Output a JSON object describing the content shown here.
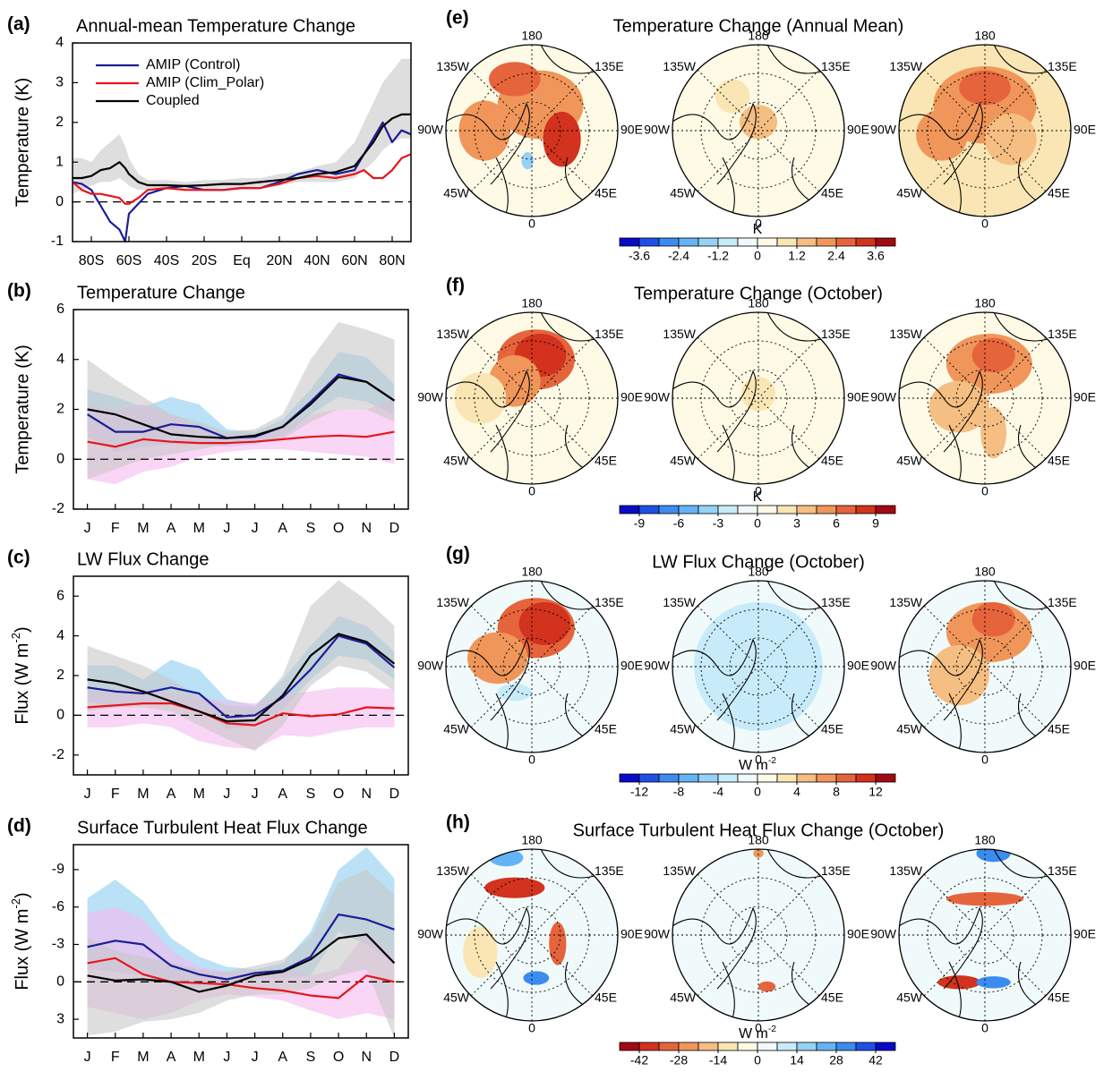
{
  "chart_data": [
    {
      "type": "line",
      "panel": "(a)",
      "title": "Annual-mean Temperature Change",
      "y_label": "Temperature (K)",
      "legend": "upper-left",
      "zero_line": true,
      "x": [
        -90,
        -85,
        -80,
        -75,
        -70,
        -65,
        -62,
        -60,
        -55,
        -50,
        -40,
        -30,
        -20,
        -10,
        0,
        10,
        20,
        30,
        40,
        50,
        60,
        65,
        70,
        75,
        80,
        85,
        90
      ],
      "xlim": [
        -90,
        90
      ],
      "xticks": [
        {
          "value": -80,
          "label": "80S"
        },
        {
          "value": -60,
          "label": "60S"
        },
        {
          "value": -40,
          "label": "40S"
        },
        {
          "value": -20,
          "label": "20S"
        },
        {
          "value": 0,
          "label": "Eq"
        },
        {
          "value": 20,
          "label": "20N"
        },
        {
          "value": 40,
          "label": "40N"
        },
        {
          "value": 60,
          "label": "60N"
        },
        {
          "value": 80,
          "label": "80N"
        }
      ],
      "ylim": [
        -1,
        4
      ],
      "yticks": [
        -1,
        0,
        1,
        2,
        3,
        4
      ],
      "series": [
        {
          "name": "AMIP (Control)",
          "color": "#1c1c96",
          "values": [
            0.5,
            0.45,
            0.3,
            -0.1,
            -0.5,
            -0.7,
            -1.0,
            -0.3,
            -0.05,
            0.2,
            0.35,
            0.4,
            0.3,
            0.3,
            0.35,
            0.35,
            0.5,
            0.7,
            0.8,
            0.7,
            0.8,
            1.2,
            1.6,
            2.0,
            1.5,
            1.8,
            1.7
          ]
        },
        {
          "name": "AMIP (Clim_Polar)",
          "color": "#e8141c",
          "values": [
            0.5,
            0.3,
            0.2,
            0.2,
            0.15,
            0.1,
            -0.05,
            -0.05,
            0.1,
            0.3,
            0.35,
            0.3,
            0.3,
            0.3,
            0.35,
            0.35,
            0.45,
            0.6,
            0.65,
            0.6,
            0.7,
            0.8,
            0.6,
            0.6,
            0.8,
            1.1,
            1.2
          ]
        },
        {
          "name": "Coupled",
          "color": "#000000",
          "band_color": "#c8c8c8",
          "values": [
            0.6,
            0.6,
            0.65,
            0.8,
            0.85,
            1.0,
            0.85,
            0.7,
            0.5,
            0.42,
            0.42,
            0.4,
            0.42,
            0.45,
            0.45,
            0.5,
            0.55,
            0.6,
            0.7,
            0.75,
            0.9,
            1.2,
            1.5,
            1.9,
            2.1,
            2.2,
            2.2
          ],
          "low": [
            0.2,
            0.3,
            0.4,
            0.5,
            0.5,
            0.6,
            0.5,
            0.4,
            0.3,
            0.3,
            0.3,
            0.3,
            0.3,
            0.35,
            0.35,
            0.4,
            0.4,
            0.5,
            0.5,
            0.5,
            0.6,
            0.8,
            1.0,
            1.3,
            1.5,
            1.6,
            1.6
          ],
          "high": [
            1.1,
            1.1,
            1.0,
            1.3,
            1.5,
            1.7,
            1.4,
            1.1,
            0.7,
            0.55,
            0.55,
            0.5,
            0.55,
            0.55,
            0.6,
            0.6,
            0.7,
            0.75,
            0.9,
            1.0,
            1.5,
            2.0,
            2.5,
            3.0,
            3.3,
            3.6,
            3.6
          ]
        }
      ]
    },
    {
      "type": "line",
      "panel": "(b)",
      "title": "Temperature Change",
      "y_label": "Temperature (K)",
      "zero_line": true,
      "categories": [
        "J",
        "F",
        "M",
        "A",
        "M",
        "J",
        "J",
        "A",
        "S",
        "O",
        "N",
        "D"
      ],
      "ylim": [
        -2,
        6
      ],
      "yticks": [
        -2,
        0,
        2,
        4,
        6
      ],
      "series": [
        {
          "color": "#1c1c96",
          "band_color": "#8ccdf0",
          "values": [
            1.8,
            1.1,
            1.1,
            1.4,
            1.3,
            0.85,
            0.9,
            1.3,
            2.3,
            3.4,
            3.1,
            2.35
          ],
          "low": [
            0.9,
            0.3,
            0.5,
            0.6,
            0.6,
            0.5,
            0.6,
            0.9,
            1.8,
            2.5,
            2.3,
            1.8
          ],
          "high": [
            2.8,
            2.5,
            2.1,
            2.5,
            2.2,
            1.2,
            1.1,
            1.6,
            2.8,
            4.3,
            4.1,
            3.0
          ]
        },
        {
          "color": "#e8141c",
          "band_color": "#f5b9f0",
          "values": [
            0.7,
            0.5,
            0.8,
            0.7,
            0.65,
            0.65,
            0.7,
            0.8,
            0.9,
            0.95,
            0.9,
            1.1
          ],
          "low": [
            -0.8,
            -1.0,
            -0.5,
            -0.3,
            0.1,
            0.3,
            0.4,
            0.4,
            0.3,
            0.2,
            0.1,
            -0.2
          ],
          "high": [
            2.2,
            2.0,
            2.2,
            1.8,
            1.3,
            1.0,
            1.0,
            1.3,
            1.8,
            2.0,
            2.0,
            2.4
          ]
        },
        {
          "color": "#000000",
          "band_color": "#c8c8c8",
          "values": [
            2.0,
            1.8,
            1.4,
            1.0,
            0.9,
            0.85,
            0.95,
            1.3,
            2.2,
            3.3,
            3.1,
            2.35
          ],
          "low": [
            -0.8,
            -0.4,
            0,
            0.2,
            0.4,
            0.6,
            0.7,
            0.8,
            1.5,
            2.0,
            2.0,
            1.5
          ],
          "high": [
            4.0,
            3.2,
            2.5,
            1.8,
            1.5,
            1.1,
            1.2,
            1.8,
            4.0,
            5.5,
            5.2,
            4.8
          ]
        }
      ]
    },
    {
      "type": "line",
      "panel": "(c)",
      "title": "LW Flux Change",
      "y_label": {
        "text": "Flux (W m",
        "sup": "-2",
        "tail": ")"
      },
      "zero_line": true,
      "categories": [
        "J",
        "F",
        "M",
        "A",
        "M",
        "J",
        "J",
        "A",
        "S",
        "O",
        "N",
        "D"
      ],
      "ylim": [
        -3,
        7
      ],
      "yticks": [
        -2,
        0,
        2,
        4,
        6
      ],
      "series": [
        {
          "color": "#1c1c96",
          "band_color": "#8ccdf0",
          "values": [
            1.4,
            1.2,
            1.1,
            1.4,
            1.1,
            -0.1,
            0,
            0.9,
            2.3,
            4.0,
            3.6,
            2.4
          ],
          "low": [
            0.7,
            0.4,
            0.6,
            0.7,
            0.3,
            -0.7,
            -0.5,
            0.3,
            1.8,
            3.0,
            2.8,
            1.8
          ],
          "high": [
            2.5,
            2.5,
            1.8,
            2.8,
            2.3,
            0.8,
            0.5,
            1.8,
            3.5,
            5.0,
            4.5,
            3.2
          ]
        },
        {
          "color": "#e8141c",
          "band_color": "#f5b9f0",
          "values": [
            0.4,
            0.5,
            0.6,
            0.6,
            0.2,
            -0.4,
            -0.5,
            0.1,
            -0.05,
            0.05,
            0.4,
            0.35
          ],
          "low": [
            -0.6,
            -0.6,
            -0.4,
            -0.6,
            -1.3,
            -1.6,
            -1.7,
            -1.0,
            -1.1,
            -0.8,
            -0.6,
            -0.6
          ],
          "high": [
            1.2,
            1.3,
            1.3,
            1.1,
            0.9,
            0.7,
            0.6,
            1.0,
            1.2,
            1.4,
            1.4,
            1.3
          ]
        },
        {
          "color": "#000000",
          "band_color": "#c8c8c8",
          "values": [
            1.8,
            1.6,
            1.2,
            0.7,
            0.2,
            -0.3,
            -0.25,
            1.0,
            3.0,
            4.1,
            3.7,
            2.6
          ],
          "low": [
            0.2,
            0.4,
            0.4,
            0.2,
            -0.5,
            -1.2,
            -1.8,
            -0.5,
            1.5,
            2.5,
            2.2,
            1.2
          ],
          "high": [
            3.5,
            3.0,
            2.5,
            1.8,
            1.0,
            0.5,
            0.4,
            2.0,
            5.5,
            6.8,
            5.8,
            4.5
          ]
        }
      ]
    },
    {
      "type": "line",
      "panel": "(d)",
      "title": "Surface Turbulent Heat Flux Change",
      "y_label": {
        "text": "Flux (W m",
        "sup": "-2",
        "tail": ")"
      },
      "zero_line": true,
      "categories": [
        "J",
        "F",
        "M",
        "A",
        "M",
        "J",
        "J",
        "A",
        "S",
        "O",
        "N",
        "D"
      ],
      "ylim": [
        4.5,
        -11
      ],
      "yticks": [
        -9,
        -6,
        -3,
        0,
        3
      ],
      "series": [
        {
          "color": "#1c1c96",
          "band_color": "#8ccdf0",
          "values": [
            -2.8,
            -3.3,
            -3.0,
            -1.3,
            -0.6,
            -0.2,
            -0.7,
            -0.9,
            -2.0,
            -5.4,
            -5.0,
            -4.2
          ],
          "low": [
            -6.7,
            -8.2,
            -6.5,
            -3.5,
            -2,
            -1.2,
            -1,
            -1.5,
            -4,
            -9,
            -10.8,
            -8.3
          ],
          "high": [
            -1,
            -0.8,
            -0.5,
            0.3,
            0.5,
            0.3,
            -0.2,
            -0.3,
            -0.5,
            -4,
            -3,
            -1.5
          ]
        },
        {
          "color": "#e8141c",
          "band_color": "#f5b9f0",
          "values": [
            -1.5,
            -1.9,
            -0.6,
            0,
            0.1,
            0.2,
            0.5,
            0.7,
            1.1,
            1.3,
            -0.5,
            0
          ],
          "low": [
            -5.5,
            -6,
            -5,
            -2.5,
            -1.2,
            -0.8,
            -1,
            -1,
            -0.5,
            -1,
            -4,
            -2
          ],
          "high": [
            2,
            2.5,
            3,
            2.5,
            1.5,
            1,
            1.2,
            1.5,
            2.3,
            3,
            2.5,
            3
          ]
        },
        {
          "color": "#000000",
          "band_color": "#c8c8c8",
          "values": [
            -0.5,
            -0.1,
            -0.2,
            0,
            0.8,
            0.3,
            -0.5,
            -0.8,
            -1.8,
            -3.5,
            -3.8,
            -1.5
          ],
          "low": [
            -3.5,
            -2.5,
            -2,
            -1.5,
            -1,
            -0.8,
            -1.3,
            -1.8,
            -3.5,
            -8,
            -9,
            -7
          ],
          "high": [
            4.3,
            4,
            3.2,
            3,
            2.5,
            1.5,
            1,
            1,
            0.5,
            -0.5,
            -1,
            4.5
          ]
        }
      ]
    },
    {
      "type": "polar_map",
      "panel": "(e)",
      "title": "Temperature Change (Annual Mean)",
      "maps": [
        {
          "lon_labels": [
            "180",
            "135E",
            "90E",
            "45E",
            "0",
            "45W",
            "90W",
            "135W"
          ]
        },
        {
          "lon_labels": [
            "180",
            "135E",
            "90E",
            "45E",
            "0",
            "45W",
            "90W",
            "135W"
          ]
        },
        {
          "lon_labels": [
            "180",
            "135E",
            "90E",
            "45E",
            "0",
            "45W",
            "90W",
            "135W"
          ]
        }
      ],
      "colorbar": {
        "label": "K",
        "clim": [
          -4.2,
          4.2
        ],
        "ticks": [
          -3.6,
          -2.4,
          -1.2,
          0,
          1.2,
          2.4,
          3.6
        ],
        "colors": [
          "#0a0ac8",
          "#1e50e6",
          "#3c8cf0",
          "#64b4f5",
          "#96d2f5",
          "#c8ebfa",
          "#f0fafa",
          "#fffae6",
          "#fae6b4",
          "#f5be82",
          "#f0965a",
          "#e6643c",
          "#d2321e",
          "#a00a14"
        ]
      }
    },
    {
      "type": "polar_map",
      "panel": "(f)",
      "title": "Temperature Change (October)",
      "maps": [
        {
          "lon_labels": [
            "180",
            "135E",
            "90E",
            "45E",
            "0",
            "45W",
            "90W",
            "135W"
          ]
        },
        {
          "lon_labels": [
            "180",
            "135E",
            "90E",
            "45E",
            "0",
            "45W",
            "90W",
            "135W"
          ]
        },
        {
          "lon_labels": [
            "180",
            "135E",
            "90E",
            "45E",
            "0",
            "45W",
            "90W",
            "135W"
          ]
        }
      ],
      "colorbar": {
        "label": "K",
        "clim": [
          -10.5,
          10.5
        ],
        "ticks": [
          -9,
          -6,
          -3,
          0,
          3,
          6,
          9
        ],
        "colors": [
          "#0a0ac8",
          "#1e50e6",
          "#3c8cf0",
          "#64b4f5",
          "#96d2f5",
          "#c8ebfa",
          "#f0fafa",
          "#fffae6",
          "#fae6b4",
          "#f5be82",
          "#f0965a",
          "#e6643c",
          "#d2321e",
          "#a00a14"
        ]
      }
    },
    {
      "type": "polar_map",
      "panel": "(g)",
      "title": "LW Flux Change (October)",
      "maps": [
        {
          "lon_labels": [
            "180",
            "135E",
            "90E",
            "45E",
            "0",
            "45W",
            "90W",
            "135W"
          ]
        },
        {
          "lon_labels": [
            "180",
            "135E",
            "90E",
            "45E",
            "0",
            "45W",
            "90W",
            "135W"
          ]
        },
        {
          "lon_labels": [
            "180",
            "135E",
            "90E",
            "45E",
            "0",
            "45W",
            "90W",
            "135W"
          ]
        }
      ],
      "colorbar": {
        "label": {
          "text": "W m",
          "sup": "-2"
        },
        "clim": [
          -14,
          14
        ],
        "ticks": [
          -12,
          -8,
          -4,
          0,
          4,
          8,
          12
        ],
        "colors": [
          "#0a0ac8",
          "#1e50e6",
          "#3c8cf0",
          "#64b4f5",
          "#96d2f5",
          "#c8ebfa",
          "#f0fafa",
          "#fffae6",
          "#fae6b4",
          "#f5be82",
          "#f0965a",
          "#e6643c",
          "#d2321e",
          "#a00a14"
        ]
      }
    },
    {
      "type": "polar_map",
      "panel": "(h)",
      "title": "Surface Turbulent Heat Flux Change (October)",
      "maps": [
        {
          "lon_labels": [
            "180",
            "135E",
            "90E",
            "45E",
            "0",
            "45W",
            "90W",
            "135W"
          ]
        },
        {
          "lon_labels": [
            "180",
            "135E",
            "90E",
            "45E",
            "0",
            "45W",
            "90W",
            "135W"
          ]
        },
        {
          "lon_labels": [
            "180",
            "135E",
            "90E",
            "45E",
            "0",
            "45W",
            "90W",
            "135W"
          ]
        }
      ],
      "colorbar": {
        "label": {
          "text": "W m",
          "sup": "-2"
        },
        "clim": [
          -49,
          49
        ],
        "ticks": [
          -42,
          -28,
          -14,
          0,
          14,
          28,
          42
        ],
        "colors": [
          "#a00a14",
          "#d2321e",
          "#e6643c",
          "#f0965a",
          "#f5be82",
          "#fae6b4",
          "#fffae6",
          "#f0fafa",
          "#c8ebfa",
          "#96d2f5",
          "#64b4f5",
          "#3c8cf0",
          "#1e50e6",
          "#0a0ac8"
        ]
      }
    }
  ]
}
